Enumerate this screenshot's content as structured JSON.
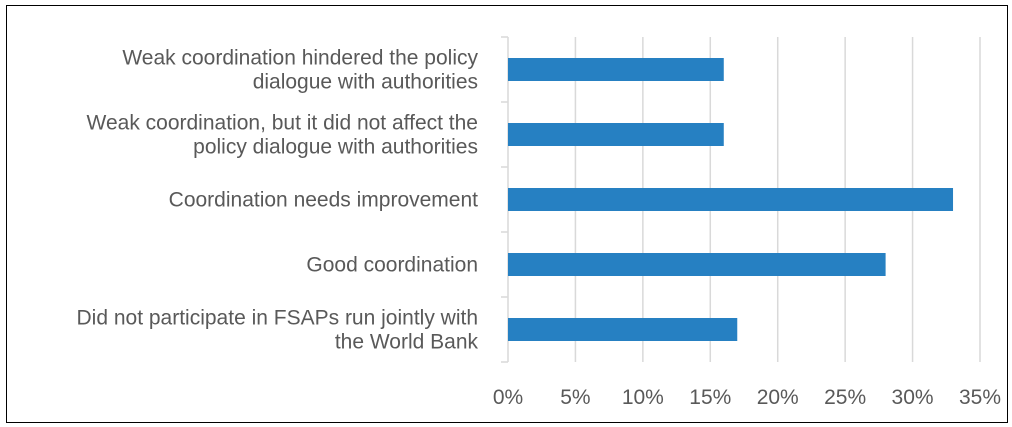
{
  "chart_data": {
    "type": "bar",
    "orientation": "horizontal",
    "title": "",
    "xlabel": "",
    "ylabel": "",
    "categories": [
      [
        "Weak coordination hindered the policy",
        "dialogue with authorities"
      ],
      [
        "Weak coordination, but it did not affect the",
        "policy dialogue with authorities"
      ],
      [
        "Coordination needs improvement"
      ],
      [
        "Good coordination"
      ],
      [
        "Did not participate in FSAPs run jointly with",
        "the World Bank"
      ]
    ],
    "values": [
      16,
      16,
      33,
      28,
      17
    ],
    "value_unit": "%",
    "xlim": [
      0,
      35
    ],
    "ticks": [
      0,
      5,
      10,
      15,
      20,
      25,
      30,
      35
    ],
    "tick_labels": [
      "0%",
      "5%",
      "10%",
      "15%",
      "20%",
      "25%",
      "30%",
      "35%"
    ],
    "grid": "vertical",
    "legend": "none",
    "bar_color": "#2680C2",
    "grid_color": "#D9D9D9",
    "text_color": "#595959"
  }
}
